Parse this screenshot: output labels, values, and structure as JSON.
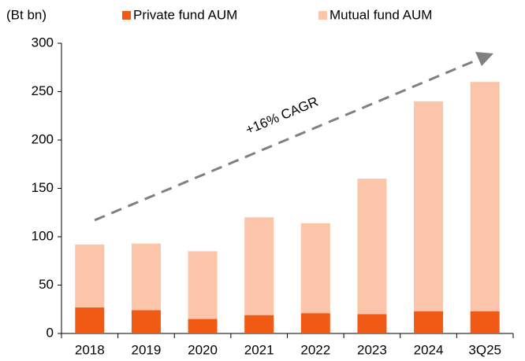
{
  "chart_data": {
    "type": "stacked_bar",
    "y_label": "(Bt bn)",
    "annotation": "+16% CAGR",
    "categories": [
      "2018",
      "2019",
      "2020",
      "2021",
      "2022",
      "2023",
      "2024",
      "3Q25"
    ],
    "series": [
      {
        "name": "Private fund AUM",
        "color": "#f05a14",
        "values": [
          27,
          24,
          15,
          19,
          21,
          20,
          23,
          23
        ]
      },
      {
        "name": "Mutual fund AUM",
        "color": "#fcc4a8",
        "values": [
          65,
          69,
          70,
          101,
          93,
          140,
          217,
          237
        ]
      }
    ],
    "ylim": [
      0,
      300
    ],
    "yticks": [
      0,
      50,
      100,
      150,
      200,
      250,
      300
    ]
  }
}
